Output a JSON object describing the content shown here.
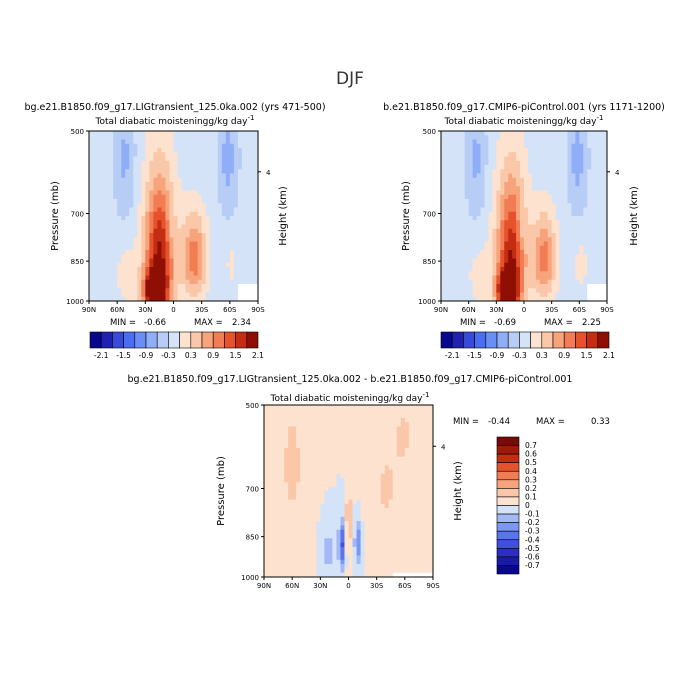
{
  "figure": {
    "title": "DJF"
  },
  "colors": {
    "background": "#d4e3f7",
    "palette": [
      "#08088c",
      "#2121b0",
      "#3a4ad8",
      "#4a6ef0",
      "#6b8ef5",
      "#90aef7",
      "#b8cdf5",
      "#d4e3f7",
      "#fde2cf",
      "#fac8a8",
      "#f7a47c",
      "#f27d55",
      "#e5522c",
      "#c52d12",
      "#8f0f05"
    ]
  },
  "chart_data": [
    {
      "type": "heatmap",
      "experiment": "bg.e21.B1850.f09_g17.LIGtransient_125.0ka.002 (yrs 471-500)",
      "title": "Total diabatic moistening",
      "units_label": "g/kg day",
      "units_exponent": "-1",
      "ylabel": "Pressure (mb)",
      "ylabel_right": "Height (km)",
      "x_ticks": [
        "90N",
        "60N",
        "30N",
        "0",
        "30S",
        "60S",
        "90S"
      ],
      "y_ticks": [
        "500",
        "700",
        "850",
        "1000"
      ],
      "right_ticks": [
        "4"
      ],
      "grid": false,
      "min_label": "MIN =",
      "min_value": "-0.66",
      "max_label": "MAX =",
      "max_value": "2.34",
      "colorbar": {
        "orientation": "horizontal",
        "levels": [
          "-2.1",
          "-1.5",
          "-0.9",
          "-0.3",
          "0.3",
          "0.9",
          "1.5",
          "2.1"
        ],
        "count": 15
      },
      "features": [
        {
          "lat": -58,
          "p": 560,
          "amp": -0.55,
          "slat": 8,
          "sp": 100
        },
        {
          "lat": 52,
          "p": 560,
          "amp": -0.5,
          "slat": 8,
          "sp": 110
        },
        {
          "lat": 15,
          "p": 830,
          "amp": 2.0,
          "slat": 11,
          "sp": 170
        },
        {
          "lat": 20,
          "p": 960,
          "amp": 2.2,
          "slat": 8,
          "sp": 55
        },
        {
          "lat": -22,
          "p": 840,
          "amp": 1.25,
          "slat": 9,
          "sp": 100
        },
        {
          "lat": 3,
          "p": 740,
          "amp": -0.35,
          "slat": 3,
          "sp": 40
        },
        {
          "lat": -62,
          "p": 860,
          "amp": 0.2,
          "slat": 6,
          "sp": 70
        },
        {
          "lat": 50,
          "p": 900,
          "amp": 0.25,
          "slat": 10,
          "sp": 90
        }
      ]
    },
    {
      "type": "heatmap",
      "experiment": "b.e21.B1850.f09_g17.CMIP6-piControl.001 (yrs 1171-1200)",
      "title": "Total diabatic moistening",
      "units_label": "g/kg day",
      "units_exponent": "-1",
      "ylabel": "Pressure (mb)",
      "ylabel_right": "Height (km)",
      "x_ticks": [
        "90N",
        "60N",
        "30N",
        "0",
        "30S",
        "60S",
        "90S"
      ],
      "y_ticks": [
        "500",
        "700",
        "850",
        "1000"
      ],
      "right_ticks": [
        "4"
      ],
      "grid": false,
      "min_label": "MIN =",
      "min_value": "-0.69",
      "max_label": "MAX =",
      "max_value": "2.25",
      "colorbar": {
        "orientation": "horizontal",
        "levels": [
          "-2.1",
          "-1.5",
          "-0.9",
          "-0.3",
          "0.3",
          "0.9",
          "1.5",
          "2.1"
        ],
        "count": 15
      },
      "features": [
        {
          "lat": -58,
          "p": 560,
          "amp": -0.55,
          "slat": 8,
          "sp": 100
        },
        {
          "lat": 52,
          "p": 560,
          "amp": -0.5,
          "slat": 8,
          "sp": 110
        },
        {
          "lat": 14,
          "p": 830,
          "amp": 1.9,
          "slat": 11,
          "sp": 170
        },
        {
          "lat": 18,
          "p": 960,
          "amp": 2.1,
          "slat": 8,
          "sp": 55
        },
        {
          "lat": -22,
          "p": 840,
          "amp": 1.2,
          "slat": 9,
          "sp": 100
        },
        {
          "lat": 3,
          "p": 740,
          "amp": -0.35,
          "slat": 3,
          "sp": 40
        },
        {
          "lat": -62,
          "p": 860,
          "amp": 0.25,
          "slat": 6,
          "sp": 70
        },
        {
          "lat": 48,
          "p": 900,
          "amp": 0.25,
          "slat": 10,
          "sp": 90
        }
      ]
    },
    {
      "type": "heatmap",
      "experiment": "bg.e21.B1850.f09_g17.LIGtransient_125.0ka.002 - b.e21.B1850.f09_g17.CMIP6-piControl.001",
      "title": "Total diabatic moistening",
      "units_label": "g/kg day",
      "units_exponent": "-1",
      "ylabel": "Pressure (mb)",
      "ylabel_right": "Height (km)",
      "x_ticks": [
        "90N",
        "60N",
        "30N",
        "0",
        "30S",
        "60S",
        "90S"
      ],
      "y_ticks": [
        "500",
        "700",
        "850",
        "1000"
      ],
      "right_ticks": [
        "4"
      ],
      "grid": false,
      "min_label": "MIN =",
      "min_value": "-0.44",
      "max_label": "MAX =",
      "max_value": "0.33",
      "colorbar": {
        "orientation": "vertical",
        "levels": [
          "0.7",
          "0.6",
          "0.5",
          "0.4",
          "0.3",
          "0.2",
          "0.1",
          "0",
          "-0.1",
          "-0.2",
          "-0.3",
          "-0.4",
          "-0.5",
          "-0.6",
          "-0.7"
        ],
        "count": 16
      },
      "features": [
        {
          "lat": 7,
          "p": 880,
          "amp": -0.42,
          "slat": 2.5,
          "sp": 60
        },
        {
          "lat": -10,
          "p": 870,
          "amp": -0.3,
          "slat": 2.5,
          "sp": 55
        },
        {
          "lat": 0,
          "p": 800,
          "amp": 0.22,
          "slat": 2,
          "sp": 90
        },
        {
          "lat": 60,
          "p": 640,
          "amp": 0.12,
          "slat": 12,
          "sp": 160
        },
        {
          "lat": -40,
          "p": 700,
          "amp": 0.11,
          "slat": 14,
          "sp": 120
        },
        {
          "lat": 22,
          "p": 900,
          "amp": -0.15,
          "slat": 5,
          "sp": 60
        },
        {
          "lat": -60,
          "p": 560,
          "amp": 0.1,
          "slat": 8,
          "sp": 60
        }
      ]
    }
  ]
}
